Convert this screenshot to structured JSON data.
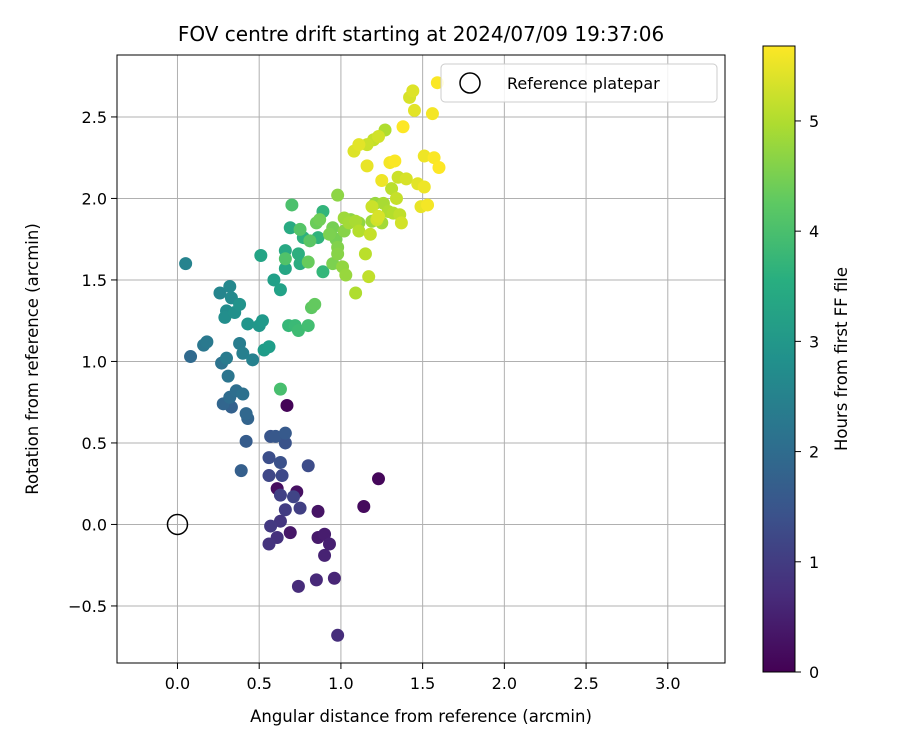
{
  "chart_data": {
    "type": "scatter",
    "title": "FOV centre drift starting at 2024/07/09 19:37:06",
    "xlabel": "Angular distance from reference (arcmin)",
    "ylabel": "Rotation from reference (arcmin)",
    "xlim": [
      -0.37,
      3.35
    ],
    "ylim": [
      -0.85,
      2.88
    ],
    "xticks": [
      0.0,
      0.5,
      1.0,
      1.5,
      2.0,
      2.5,
      3.0
    ],
    "xtick_labels": [
      "0.0",
      "0.5",
      "1.0",
      "1.5",
      "2.0",
      "2.5",
      "3.0"
    ],
    "yticks": [
      -0.5,
      0.0,
      0.5,
      1.0,
      1.5,
      2.0,
      2.5
    ],
    "ytick_labels": [
      "−0.5",
      "0.0",
      "0.5",
      "1.0",
      "1.5",
      "2.0",
      "2.5"
    ],
    "grid": true,
    "colormap": "viridis",
    "colorbar": {
      "label": "Hours from first FF file",
      "range": [
        0,
        5.68
      ],
      "ticks": [
        0,
        1,
        2,
        3,
        4,
        5
      ],
      "tick_labels": [
        "0",
        "1",
        "2",
        "3",
        "4",
        "5"
      ]
    },
    "legend": {
      "placement": "top-right",
      "entries": [
        {
          "label": "Reference platepar",
          "marker": "open-circle"
        }
      ]
    },
    "reference_point": {
      "x": 0.0,
      "y": 0.0
    },
    "series": [
      {
        "points": [
          {
            "x": 0.67,
            "y": 0.73,
            "c": 0.05
          },
          {
            "x": 1.23,
            "y": 0.28,
            "c": 0.1
          },
          {
            "x": 1.14,
            "y": 0.11,
            "c": 0.15
          },
          {
            "x": 0.61,
            "y": 0.22,
            "c": 0.2
          },
          {
            "x": 0.73,
            "y": 0.2,
            "c": 0.25
          },
          {
            "x": 0.86,
            "y": 0.08,
            "c": 0.3
          },
          {
            "x": 0.69,
            "y": -0.05,
            "c": 0.35
          },
          {
            "x": 0.86,
            "y": -0.08,
            "c": 0.4
          },
          {
            "x": 0.9,
            "y": -0.06,
            "c": 0.45
          },
          {
            "x": 0.93,
            "y": -0.12,
            "c": 0.5
          },
          {
            "x": 0.9,
            "y": -0.19,
            "c": 0.55
          },
          {
            "x": 0.96,
            "y": -0.33,
            "c": 0.6
          },
          {
            "x": 0.85,
            "y": -0.34,
            "c": 0.65
          },
          {
            "x": 0.74,
            "y": -0.38,
            "c": 0.7
          },
          {
            "x": 0.98,
            "y": -0.68,
            "c": 0.75
          },
          {
            "x": 0.61,
            "y": -0.08,
            "c": 0.8
          },
          {
            "x": 0.56,
            "y": -0.12,
            "c": 0.85
          },
          {
            "x": 0.63,
            "y": 0.02,
            "c": 0.9
          },
          {
            "x": 0.57,
            "y": -0.01,
            "c": 0.95
          },
          {
            "x": 0.66,
            "y": 0.09,
            "c": 1.0
          },
          {
            "x": 0.75,
            "y": 0.1,
            "c": 1.05
          },
          {
            "x": 0.63,
            "y": 0.18,
            "c": 1.1
          },
          {
            "x": 0.71,
            "y": 0.17,
            "c": 1.15
          },
          {
            "x": 0.56,
            "y": 0.3,
            "c": 1.2
          },
          {
            "x": 0.64,
            "y": 0.3,
            "c": 1.25
          },
          {
            "x": 0.8,
            "y": 0.36,
            "c": 1.3
          },
          {
            "x": 0.56,
            "y": 0.41,
            "c": 1.35
          },
          {
            "x": 0.63,
            "y": 0.38,
            "c": 1.4
          },
          {
            "x": 0.66,
            "y": 0.5,
            "c": 1.45
          },
          {
            "x": 0.57,
            "y": 0.54,
            "c": 1.5
          },
          {
            "x": 0.6,
            "y": 0.54,
            "c": 1.55
          },
          {
            "x": 0.66,
            "y": 0.56,
            "c": 1.6
          },
          {
            "x": 0.42,
            "y": 0.51,
            "c": 1.65
          },
          {
            "x": 0.39,
            "y": 0.33,
            "c": 1.7
          },
          {
            "x": 0.33,
            "y": 0.72,
            "c": 1.75
          },
          {
            "x": 0.43,
            "y": 0.65,
            "c": 1.8
          },
          {
            "x": 0.28,
            "y": 0.74,
            "c": 1.85
          },
          {
            "x": 0.42,
            "y": 0.68,
            "c": 1.9
          },
          {
            "x": 0.08,
            "y": 1.03,
            "c": 1.95
          },
          {
            "x": 0.32,
            "y": 0.78,
            "c": 2.0
          },
          {
            "x": 0.36,
            "y": 0.82,
            "c": 2.05
          },
          {
            "x": 0.4,
            "y": 0.8,
            "c": 2.1
          },
          {
            "x": 0.27,
            "y": 0.99,
            "c": 2.15
          },
          {
            "x": 0.31,
            "y": 0.91,
            "c": 2.2
          },
          {
            "x": 0.16,
            "y": 1.1,
            "c": 2.25
          },
          {
            "x": 0.18,
            "y": 1.12,
            "c": 2.3
          },
          {
            "x": 0.3,
            "y": 1.02,
            "c": 2.35
          },
          {
            "x": 0.38,
            "y": 1.11,
            "c": 2.4
          },
          {
            "x": 0.4,
            "y": 1.05,
            "c": 2.45
          },
          {
            "x": 0.46,
            "y": 1.01,
            "c": 2.5
          },
          {
            "x": 0.05,
            "y": 1.6,
            "c": 2.55
          },
          {
            "x": 0.26,
            "y": 1.42,
            "c": 2.6
          },
          {
            "x": 0.32,
            "y": 1.46,
            "c": 2.65
          },
          {
            "x": 0.33,
            "y": 1.39,
            "c": 2.7
          },
          {
            "x": 0.3,
            "y": 1.31,
            "c": 2.75
          },
          {
            "x": 0.29,
            "y": 1.27,
            "c": 2.8
          },
          {
            "x": 0.35,
            "y": 1.3,
            "c": 2.85
          },
          {
            "x": 0.38,
            "y": 1.35,
            "c": 2.9
          },
          {
            "x": 0.43,
            "y": 1.23,
            "c": 2.95
          },
          {
            "x": 0.5,
            "y": 1.22,
            "c": 3.0
          },
          {
            "x": 0.52,
            "y": 1.25,
            "c": 3.05
          },
          {
            "x": 0.53,
            "y": 1.07,
            "c": 3.1
          },
          {
            "x": 0.56,
            "y": 1.09,
            "c": 3.15
          },
          {
            "x": 0.59,
            "y": 1.5,
            "c": 3.2
          },
          {
            "x": 0.63,
            "y": 1.44,
            "c": 3.25
          },
          {
            "x": 0.51,
            "y": 1.65,
            "c": 3.3
          },
          {
            "x": 0.66,
            "y": 1.57,
            "c": 3.35
          },
          {
            "x": 0.66,
            "y": 1.68,
            "c": 3.4
          },
          {
            "x": 0.69,
            "y": 1.82,
            "c": 3.45
          },
          {
            "x": 0.75,
            "y": 1.6,
            "c": 3.5
          },
          {
            "x": 0.74,
            "y": 1.66,
            "c": 3.55
          },
          {
            "x": 0.77,
            "y": 1.76,
            "c": 3.6
          },
          {
            "x": 0.86,
            "y": 1.76,
            "c": 3.65
          },
          {
            "x": 0.89,
            "y": 1.92,
            "c": 3.7
          },
          {
            "x": 0.89,
            "y": 1.55,
            "c": 3.75
          },
          {
            "x": 0.68,
            "y": 1.22,
            "c": 3.8
          },
          {
            "x": 0.72,
            "y": 1.22,
            "c": 3.85
          },
          {
            "x": 0.74,
            "y": 1.19,
            "c": 3.9
          },
          {
            "x": 0.8,
            "y": 1.22,
            "c": 3.95
          },
          {
            "x": 0.63,
            "y": 0.83,
            "c": 4.0
          },
          {
            "x": 0.7,
            "y": 1.96,
            "c": 4.05
          },
          {
            "x": 0.66,
            "y": 1.63,
            "c": 4.1
          },
          {
            "x": 0.75,
            "y": 1.81,
            "c": 4.15
          },
          {
            "x": 0.81,
            "y": 1.74,
            "c": 4.2
          },
          {
            "x": 0.82,
            "y": 1.33,
            "c": 4.25
          },
          {
            "x": 0.84,
            "y": 1.35,
            "c": 4.3
          },
          {
            "x": 0.8,
            "y": 1.61,
            "c": 4.35
          },
          {
            "x": 0.85,
            "y": 1.85,
            "c": 4.4
          },
          {
            "x": 0.87,
            "y": 1.87,
            "c": 4.45
          },
          {
            "x": 0.95,
            "y": 1.82,
            "c": 4.5
          },
          {
            "x": 0.95,
            "y": 1.6,
            "c": 4.55
          },
          {
            "x": 0.98,
            "y": 1.7,
            "c": 4.6
          },
          {
            "x": 0.98,
            "y": 1.66,
            "c": 4.65
          },
          {
            "x": 0.98,
            "y": 2.02,
            "c": 4.7
          },
          {
            "x": 1.01,
            "y": 1.58,
            "c": 4.75
          },
          {
            "x": 1.03,
            "y": 1.53,
            "c": 4.8
          },
          {
            "x": 1.02,
            "y": 1.88,
            "c": 4.85
          },
          {
            "x": 1.05,
            "y": 1.85,
            "c": 4.9
          },
          {
            "x": 1.09,
            "y": 1.86,
            "c": 4.95
          },
          {
            "x": 1.09,
            "y": 1.42,
            "c": 5.0
          },
          {
            "x": 1.11,
            "y": 1.8,
            "c": 5.05
          },
          {
            "x": 1.15,
            "y": 1.66,
            "c": 5.1
          },
          {
            "x": 1.17,
            "y": 1.52,
            "c": 5.15
          },
          {
            "x": 1.18,
            "y": 1.78,
            "c": 5.2
          },
          {
            "x": 1.19,
            "y": 1.95,
            "c": 5.25
          },
          {
            "x": 1.22,
            "y": 1.87,
            "c": 5.3
          },
          {
            "x": 1.23,
            "y": 1.89,
            "c": 5.35
          },
          {
            "x": 1.08,
            "y": 2.29,
            "c": 5.4
          },
          {
            "x": 1.11,
            "y": 2.33,
            "c": 5.45
          },
          {
            "x": 1.16,
            "y": 2.2,
            "c": 5.5
          },
          {
            "x": 1.25,
            "y": 2.11,
            "c": 5.55
          },
          {
            "x": 1.3,
            "y": 2.22,
            "c": 5.6
          },
          {
            "x": 1.33,
            "y": 2.23,
            "c": 5.65
          },
          {
            "x": 1.38,
            "y": 2.44,
            "c": 5.7
          }
        ]
      }
    ]
  },
  "extra_points": [
    {
      "x": 1.25,
      "y": 1.85,
      "c": 4.9
    },
    {
      "x": 1.27,
      "y": 2.42,
      "c": 5.0
    },
    {
      "x": 1.31,
      "y": 2.06,
      "c": 5.1
    },
    {
      "x": 1.34,
      "y": 2.0,
      "c": 5.2
    },
    {
      "x": 1.35,
      "y": 2.13,
      "c": 5.25
    },
    {
      "x": 1.37,
      "y": 1.85,
      "c": 5.3
    },
    {
      "x": 1.42,
      "y": 2.62,
      "c": 5.35
    },
    {
      "x": 1.44,
      "y": 2.66,
      "c": 5.4
    },
    {
      "x": 1.45,
      "y": 2.54,
      "c": 5.45
    },
    {
      "x": 1.47,
      "y": 2.09,
      "c": 5.45
    },
    {
      "x": 1.49,
      "y": 1.95,
      "c": 5.5
    },
    {
      "x": 1.51,
      "y": 2.26,
      "c": 5.55
    },
    {
      "x": 1.51,
      "y": 2.07,
      "c": 5.55
    },
    {
      "x": 1.53,
      "y": 1.96,
      "c": 5.6
    },
    {
      "x": 1.56,
      "y": 2.52,
      "c": 5.6
    },
    {
      "x": 1.57,
      "y": 2.25,
      "c": 5.65
    },
    {
      "x": 1.59,
      "y": 2.71,
      "c": 5.65
    },
    {
      "x": 1.6,
      "y": 2.19,
      "c": 5.68
    },
    {
      "x": 1.21,
      "y": 1.97,
      "c": 4.8
    },
    {
      "x": 1.26,
      "y": 1.97,
      "c": 4.95
    },
    {
      "x": 1.32,
      "y": 1.91,
      "c": 5.05
    },
    {
      "x": 1.36,
      "y": 1.9,
      "c": 5.15
    },
    {
      "x": 1.29,
      "y": 1.92,
      "c": 5.0
    },
    {
      "x": 1.2,
      "y": 2.36,
      "c": 5.2
    },
    {
      "x": 1.23,
      "y": 2.38,
      "c": 5.3
    },
    {
      "x": 1.06,
      "y": 1.87,
      "c": 4.7
    },
    {
      "x": 1.11,
      "y": 1.85,
      "c": 4.75
    },
    {
      "x": 1.02,
      "y": 1.8,
      "c": 4.65
    },
    {
      "x": 0.93,
      "y": 1.78,
      "c": 4.55
    },
    {
      "x": 0.97,
      "y": 1.75,
      "c": 4.5
    },
    {
      "x": 1.19,
      "y": 1.86,
      "c": 4.85
    },
    {
      "x": 1.16,
      "y": 2.33,
      "c": 5.25
    },
    {
      "x": 1.4,
      "y": 2.12,
      "c": 5.35
    }
  ]
}
